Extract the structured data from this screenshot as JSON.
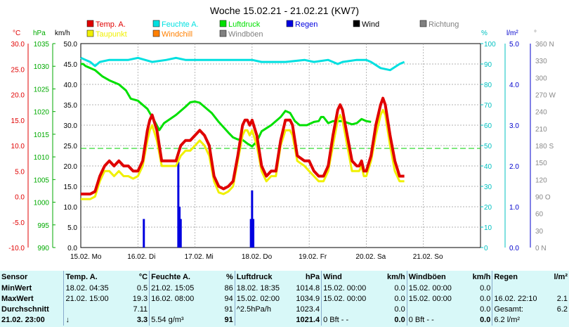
{
  "title": "Woche 15.02.21 - 21.02.21 (KW7)",
  "legend": [
    {
      "label": "Temp. A.",
      "color": "#e00000"
    },
    {
      "label": "Feuchte A.",
      "color": "#00e0e0"
    },
    {
      "label": "Luftdruck",
      "color": "#00e000"
    },
    {
      "label": "Regen",
      "color": "#0000e0"
    },
    {
      "label": "Wind",
      "color": "#000000"
    },
    {
      "label": "Richtung",
      "color": "#808080"
    },
    {
      "label": "Taupunkt",
      "color": "#f0f000"
    },
    {
      "label": "Windchill",
      "color": "#ff8000"
    },
    {
      "label": "Windböen",
      "color": "#808080"
    }
  ],
  "units": {
    "temp": "°C",
    "press": "hPa",
    "wind": "km/h",
    "hum": "%",
    "rain": "l/m²",
    "dir": "°"
  },
  "axes": {
    "temp": [
      "30.0",
      "25.0",
      "20.0",
      "15.0",
      "10.0",
      "5.0",
      "0.0",
      "-5.0",
      "-10.0"
    ],
    "press": [
      "1035",
      "1030",
      "1025",
      "1020",
      "1015",
      "1010",
      "1005",
      "1000",
      "995",
      "990"
    ],
    "wind": [
      "50.0",
      "45.0",
      "40.0",
      "35.0",
      "30.0",
      "25.0",
      "20.0",
      "15.0",
      "10.0",
      "5.0",
      "0.0"
    ],
    "hum": [
      "100",
      "90",
      "80",
      "70",
      "60",
      "50",
      "40",
      "30",
      "20",
      "10",
      "0"
    ],
    "rain": [
      "5.0",
      "4.0",
      "3.0",
      "2.0",
      "1.0",
      "0.0"
    ],
    "dir": [
      "360 N",
      "330",
      "300",
      "270 W",
      "240",
      "210",
      "180 S",
      "150",
      "120",
      "90 O",
      "60",
      "30",
      "0 N"
    ]
  },
  "day_labels": [
    "15.02. Mo",
    "16.02. Di",
    "17.02. Mi",
    "18.02. Do",
    "19.02. Fr",
    "20.02. Sa",
    "21.02. So"
  ],
  "chart_data": {
    "type": "line",
    "x_unit": "hours since 15.02. 00:00",
    "x_range": [
      0,
      168
    ],
    "series": [
      {
        "name": "Temp. A.",
        "color": "#e00000",
        "axis": "temp_c",
        "points": [
          [
            0,
            0.5
          ],
          [
            4,
            0.5
          ],
          [
            6,
            1
          ],
          [
            8,
            4
          ],
          [
            10,
            6
          ],
          [
            12,
            7
          ],
          [
            14,
            6
          ],
          [
            16,
            7
          ],
          [
            18,
            6
          ],
          [
            20,
            6
          ],
          [
            22,
            5
          ],
          [
            24,
            5
          ],
          [
            26,
            7
          ],
          [
            28,
            13
          ],
          [
            29,
            15
          ],
          [
            30,
            16
          ],
          [
            32,
            13
          ],
          [
            34,
            7
          ],
          [
            36,
            7
          ],
          [
            38,
            7
          ],
          [
            40,
            7
          ],
          [
            42,
            10
          ],
          [
            44,
            11
          ],
          [
            46,
            11
          ],
          [
            48,
            12
          ],
          [
            50,
            13
          ],
          [
            52,
            12
          ],
          [
            54,
            10
          ],
          [
            56,
            4
          ],
          [
            58,
            2
          ],
          [
            60,
            1.5
          ],
          [
            62,
            2
          ],
          [
            64,
            3
          ],
          [
            66,
            8
          ],
          [
            68,
            14
          ],
          [
            69,
            15
          ],
          [
            70,
            15
          ],
          [
            71,
            14
          ],
          [
            72,
            15
          ],
          [
            74,
            12
          ],
          [
            76,
            6
          ],
          [
            78,
            4
          ],
          [
            80,
            5
          ],
          [
            82,
            5
          ],
          [
            84,
            11
          ],
          [
            86,
            15
          ],
          [
            88,
            15
          ],
          [
            89,
            14
          ],
          [
            91,
            8
          ],
          [
            94,
            7
          ],
          [
            96,
            7
          ],
          [
            98,
            5
          ],
          [
            100,
            4
          ],
          [
            102,
            4
          ],
          [
            104,
            6
          ],
          [
            106,
            12
          ],
          [
            108,
            17
          ],
          [
            109,
            18
          ],
          [
            110,
            17
          ],
          [
            112,
            12
          ],
          [
            114,
            7
          ],
          [
            116,
            6
          ],
          [
            117,
            6
          ],
          [
            118,
            7
          ],
          [
            119,
            5
          ],
          [
            120,
            5
          ],
          [
            122,
            8
          ],
          [
            124,
            14
          ],
          [
            126,
            18
          ],
          [
            127,
            19.3
          ],
          [
            128,
            18
          ],
          [
            130,
            12
          ],
          [
            132,
            7
          ],
          [
            134,
            4
          ],
          [
            136,
            4
          ]
        ]
      },
      {
        "name": "Taupunkt",
        "color": "#f0f000",
        "axis": "temp_c",
        "points": [
          [
            0,
            -0.5
          ],
          [
            4,
            -0.5
          ],
          [
            6,
            0
          ],
          [
            8,
            3
          ],
          [
            10,
            5
          ],
          [
            12,
            5
          ],
          [
            14,
            4
          ],
          [
            16,
            5
          ],
          [
            18,
            4
          ],
          [
            20,
            4
          ],
          [
            22,
            3.5
          ],
          [
            24,
            4
          ],
          [
            26,
            6
          ],
          [
            28,
            11
          ],
          [
            29,
            13
          ],
          [
            30,
            14
          ],
          [
            32,
            11
          ],
          [
            34,
            6
          ],
          [
            36,
            6
          ],
          [
            38,
            6
          ],
          [
            40,
            6
          ],
          [
            42,
            8
          ],
          [
            44,
            9
          ],
          [
            46,
            9
          ],
          [
            48,
            10
          ],
          [
            50,
            11
          ],
          [
            52,
            10
          ],
          [
            54,
            8
          ],
          [
            56,
            3
          ],
          [
            58,
            0.8
          ],
          [
            60,
            0.5
          ],
          [
            62,
            1
          ],
          [
            64,
            2
          ],
          [
            66,
            7
          ],
          [
            68,
            12
          ],
          [
            69,
            13
          ],
          [
            70,
            13
          ],
          [
            71,
            12
          ],
          [
            72,
            13
          ],
          [
            74,
            10
          ],
          [
            76,
            5
          ],
          [
            78,
            3
          ],
          [
            80,
            4
          ],
          [
            82,
            4
          ],
          [
            84,
            10
          ],
          [
            86,
            13
          ],
          [
            88,
            13
          ],
          [
            89,
            12
          ],
          [
            91,
            7
          ],
          [
            94,
            6
          ],
          [
            96,
            5
          ],
          [
            98,
            4
          ],
          [
            100,
            3
          ],
          [
            102,
            3
          ],
          [
            104,
            5
          ],
          [
            106,
            10
          ],
          [
            108,
            15
          ],
          [
            109,
            16
          ],
          [
            110,
            15
          ],
          [
            112,
            10
          ],
          [
            114,
            5
          ],
          [
            116,
            5
          ],
          [
            117,
            5
          ],
          [
            118,
            6
          ],
          [
            119,
            4
          ],
          [
            120,
            4
          ],
          [
            122,
            7
          ],
          [
            124,
            12
          ],
          [
            126,
            16
          ],
          [
            127,
            17
          ],
          [
            128,
            16
          ],
          [
            130,
            10
          ],
          [
            132,
            5
          ],
          [
            134,
            3
          ],
          [
            136,
            3
          ]
        ]
      },
      {
        "name": "Luftdruck",
        "color": "#00e000",
        "axis": "press_hpa",
        "points": [
          [
            0,
            1035
          ],
          [
            1,
            1035
          ],
          [
            2,
            1034.5
          ],
          [
            6,
            1033.5
          ],
          [
            9,
            1032
          ],
          [
            12,
            1031
          ],
          [
            16,
            1030
          ],
          [
            19,
            1028.5
          ],
          [
            21,
            1026.5
          ],
          [
            24,
            1026
          ],
          [
            28,
            1024
          ],
          [
            31,
            1021
          ],
          [
            33,
            1018.8
          ],
          [
            35,
            1020.5
          ],
          [
            40,
            1022.5
          ],
          [
            44,
            1024.5
          ],
          [
            46,
            1025.6
          ],
          [
            48,
            1025.8
          ],
          [
            50,
            1025.5
          ],
          [
            55,
            1023
          ],
          [
            58,
            1020.8
          ],
          [
            62,
            1018.2
          ],
          [
            64,
            1017
          ],
          [
            66,
            1016.5
          ],
          [
            68,
            1016.4
          ],
          [
            70,
            1015.5
          ],
          [
            72,
            1014.8
          ],
          [
            74,
            1016
          ],
          [
            76,
            1018.5
          ],
          [
            80,
            1020
          ],
          [
            82,
            1021
          ],
          [
            84,
            1022
          ],
          [
            86,
            1023.5
          ],
          [
            88,
            1023
          ],
          [
            90,
            1021
          ],
          [
            92,
            1020
          ],
          [
            95,
            1020
          ],
          [
            98,
            1020.8
          ],
          [
            100,
            1021
          ],
          [
            101,
            1022
          ],
          [
            102,
            1022
          ],
          [
            104,
            1020.5
          ],
          [
            106,
            1021
          ],
          [
            110,
            1021
          ],
          [
            114,
            1020.2
          ],
          [
            116,
            1020.5
          ],
          [
            118,
            1021.5
          ],
          [
            120,
            1021
          ],
          [
            122,
            1020.8
          ]
        ]
      },
      {
        "name": "Feuchte A.",
        "color": "#00e0e0",
        "axis": "hum_pct",
        "points": [
          [
            0,
            93
          ],
          [
            2,
            92
          ],
          [
            4,
            91
          ],
          [
            6,
            89
          ],
          [
            8,
            91
          ],
          [
            12,
            92
          ],
          [
            20,
            92
          ],
          [
            24,
            93
          ],
          [
            30,
            91
          ],
          [
            36,
            92
          ],
          [
            40,
            93
          ],
          [
            44,
            92
          ],
          [
            54,
            92
          ],
          [
            58,
            92
          ],
          [
            64,
            92
          ],
          [
            72,
            92
          ],
          [
            76,
            91
          ],
          [
            86,
            91
          ],
          [
            94,
            92
          ],
          [
            98,
            91
          ],
          [
            104,
            92
          ],
          [
            108,
            90
          ],
          [
            110,
            91
          ],
          [
            116,
            92
          ],
          [
            120,
            92
          ],
          [
            122,
            91
          ],
          [
            126,
            88
          ],
          [
            130,
            87
          ],
          [
            134,
            90
          ],
          [
            136,
            91
          ]
        ]
      },
      {
        "name": "Regen",
        "color": "#0000e0",
        "axis": "rain_lm2",
        "bars": [
          [
            26.5,
            0.7
          ],
          [
            41,
            2.1
          ],
          [
            41.5,
            1.0
          ],
          [
            42,
            0.7
          ],
          [
            71.5,
            0.7
          ],
          [
            72,
            1.4
          ],
          [
            72.5,
            0.7
          ]
        ]
      }
    ]
  },
  "stats": {
    "headers": [
      "Sensor",
      "Temp. A.",
      "°C",
      "Feuchte A.",
      "%",
      "Luftdruck",
      "hPa",
      "Wind",
      "km/h",
      "Windböen",
      "km/h",
      "Regen",
      "l/m²"
    ],
    "rows": [
      {
        "label": "MinWert",
        "cells": [
          "18.02.  04:35",
          "0.5",
          "21.02.  15:05",
          "86",
          "18.02.  18:35",
          "1014.8",
          "15.02.  00:00",
          "0.0",
          "15.02.  00:00",
          "0.0",
          "",
          ""
        ]
      },
      {
        "label": "MaxWert",
        "cells": [
          "21.02.  15:00",
          "19.3",
          "16.02.  08:00",
          "94",
          "15.02.  02:00",
          "1034.9",
          "15.02.  00:00",
          "0.0",
          "15.02.  00:00",
          "0.0",
          "16.02.  22:10",
          "2.1"
        ]
      },
      {
        "label": "Durchschnitt",
        "cells": [
          "",
          "7.11",
          "",
          "91",
          "^2.5hPa/h",
          "1023.4",
          "",
          "0.0",
          "",
          "0.0",
          "Gesamt:",
          "6.2"
        ]
      },
      {
        "label": "21.02.  23:00",
        "cells": [
          "↓",
          "3.3",
          "5.54 g/m³",
          "91",
          "",
          "1021.4",
          "0 Bft - -",
          "0.0",
          "0 Bft - -",
          "0.0",
          "6.2 l/m²",
          ""
        ]
      }
    ]
  }
}
